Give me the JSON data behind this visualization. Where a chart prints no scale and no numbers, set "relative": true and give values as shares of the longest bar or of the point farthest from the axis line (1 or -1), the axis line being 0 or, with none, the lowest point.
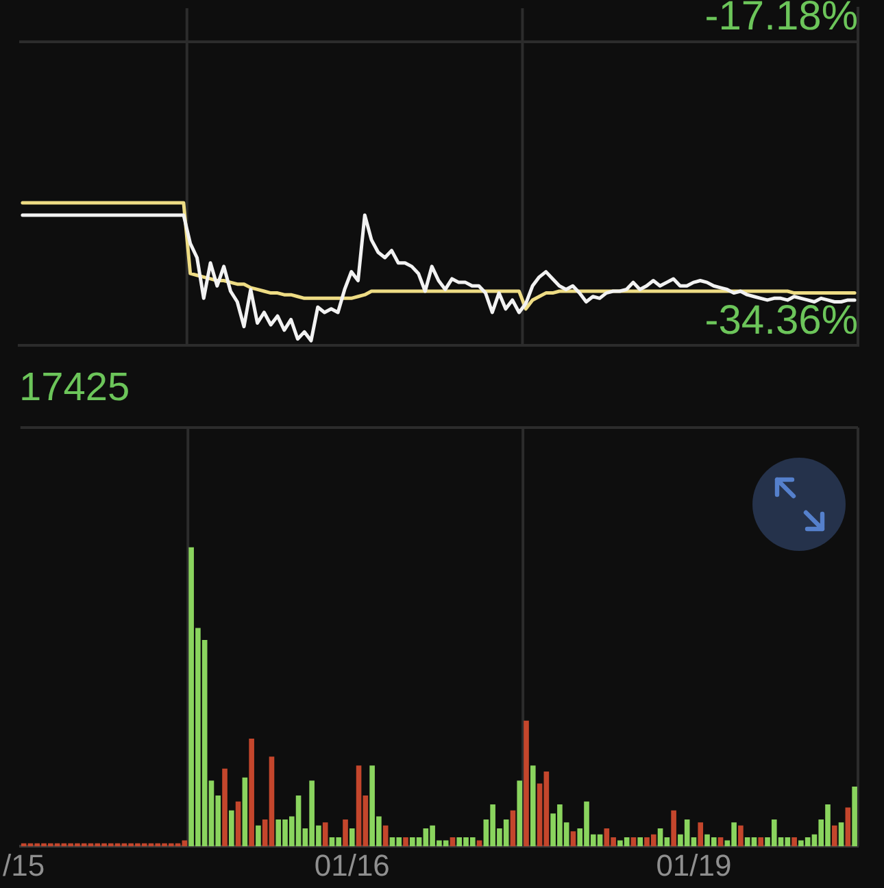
{
  "chart_data": [
    {
      "type": "line",
      "categories": [
        null,
        null,
        null,
        null,
        null,
        null,
        null,
        null,
        null,
        null,
        null,
        null,
        null,
        null,
        null,
        null,
        null,
        null,
        null,
        null,
        null,
        null,
        null,
        null,
        null,
        null,
        null,
        null,
        null,
        null,
        null,
        null,
        null,
        null,
        null,
        null,
        null,
        null,
        null,
        null,
        null,
        null,
        null,
        null,
        null,
        null,
        null,
        null,
        null,
        null,
        null,
        null,
        null,
        null,
        null,
        null,
        null,
        null,
        null,
        null,
        null,
        null,
        null,
        null,
        null,
        null,
        null,
        null,
        null,
        null,
        null,
        null,
        null,
        null,
        null,
        null,
        null,
        null,
        null,
        null,
        null,
        null,
        null,
        null,
        null,
        null,
        null,
        null,
        null,
        null,
        null,
        null,
        null,
        null,
        null,
        null,
        null,
        null,
        null,
        null,
        null,
        null,
        null,
        null,
        null,
        null,
        null,
        null,
        null,
        null,
        null,
        null,
        null,
        null,
        null,
        null,
        null,
        null,
        null,
        null,
        null,
        null,
        null,
        null,
        null
      ],
      "series": [
        {
          "color": "#f2f2f2",
          "values": [
            -27.0,
            -27.0,
            -27.0,
            -27.0,
            -27.0,
            -27.0,
            -27.0,
            -27.0,
            -27.0,
            -27.0,
            -27.0,
            -27.0,
            -27.0,
            -27.0,
            -27.0,
            -27.0,
            -27.0,
            -27.0,
            -27.0,
            -27.0,
            -27.0,
            -27.0,
            -27.0,
            -27.0,
            -27.0,
            -28.6,
            -29.4,
            -31.7,
            -29.7,
            -31.0,
            -29.9,
            -31.3,
            -31.9,
            -33.3,
            -31.2,
            -33.1,
            -32.5,
            -33.2,
            -32.7,
            -33.5,
            -32.9,
            -34.0,
            -33.6,
            -34.1,
            -32.2,
            -32.5,
            -32.3,
            -32.5,
            -31.2,
            -30.2,
            -30.7,
            -27.0,
            -28.4,
            -29.1,
            -29.4,
            -29.0,
            -29.7,
            -29.7,
            -29.9,
            -30.3,
            -31.3,
            -29.9,
            -30.7,
            -31.2,
            -30.6,
            -30.8,
            -30.8,
            -31.0,
            -31.0,
            -31.4,
            -32.5,
            -31.4,
            -32.3,
            -31.8,
            -32.5,
            -32.0,
            -31.0,
            -30.5,
            -30.2,
            -30.6,
            -31.0,
            -31.2,
            -31.0,
            -31.4,
            -31.9,
            -31.6,
            -31.7,
            -31.4,
            -31.3,
            -31.3,
            -31.2,
            -30.8,
            -31.2,
            -31.0,
            -30.7,
            -31.0,
            -30.8,
            -30.6,
            -31.0,
            -31.0,
            -30.8,
            -30.7,
            -30.8,
            -31.0,
            -31.1,
            -31.2,
            -31.4,
            -31.3,
            -31.5,
            -31.6,
            -31.7,
            -31.8,
            -31.7,
            -31.7,
            -31.8,
            -31.6,
            -31.7,
            -31.8,
            -31.9,
            -31.7,
            -31.8,
            -31.9,
            -31.9,
            -31.8,
            -31.8
          ]
        },
        {
          "color": "#eedc84",
          "values": [
            -26.3,
            -26.3,
            -26.3,
            -26.3,
            -26.3,
            -26.3,
            -26.3,
            -26.3,
            -26.3,
            -26.3,
            -26.3,
            -26.3,
            -26.3,
            -26.3,
            -26.3,
            -26.3,
            -26.3,
            -26.3,
            -26.3,
            -26.3,
            -26.3,
            -26.3,
            -26.3,
            -26.3,
            -26.3,
            -30.3,
            -30.4,
            -30.5,
            -30.6,
            -30.7,
            -30.7,
            -30.8,
            -30.9,
            -30.9,
            -31.1,
            -31.2,
            -31.3,
            -31.4,
            -31.4,
            -31.5,
            -31.5,
            -31.6,
            -31.7,
            -31.7,
            -31.7,
            -31.7,
            -31.7,
            -31.7,
            -31.7,
            -31.7,
            -31.6,
            -31.5,
            -31.3,
            -31.3,
            -31.3,
            -31.3,
            -31.3,
            -31.3,
            -31.3,
            -31.3,
            -31.3,
            -31.3,
            -31.3,
            -31.3,
            -31.3,
            -31.3,
            -31.3,
            -31.3,
            -31.3,
            -31.3,
            -31.3,
            -31.3,
            -31.3,
            -31.3,
            -31.3,
            -32.3,
            -31.8,
            -31.6,
            -31.4,
            -31.4,
            -31.3,
            -31.3,
            -31.3,
            -31.3,
            -31.3,
            -31.3,
            -31.3,
            -31.3,
            -31.3,
            -31.3,
            -31.3,
            -31.3,
            -31.3,
            -31.3,
            -31.3,
            -31.3,
            -31.3,
            -31.3,
            -31.3,
            -31.3,
            -31.3,
            -31.3,
            -31.3,
            -31.3,
            -31.3,
            -31.3,
            -31.3,
            -31.3,
            -31.3,
            -31.3,
            -31.3,
            -31.3,
            -31.3,
            -31.3,
            -31.3,
            -31.4,
            -31.4,
            -31.4,
            -31.4,
            -31.4,
            -31.4,
            -31.4,
            -31.4,
            -31.4,
            -31.4
          ]
        }
      ],
      "ylim": [
        -34.36,
        -15.3
      ],
      "yticks": [
        {
          "value": -34.36,
          "label": "-34.36%"
        },
        {
          "value": -17.18,
          "label": "-17.18%"
        }
      ],
      "grid": true,
      "tick_labels": "y"
    },
    {
      "type": "bar",
      "title": "17425",
      "relative": true,
      "stacked": true,
      "categories": [
        "/15",
        null,
        null,
        null,
        null,
        null,
        null,
        null,
        null,
        null,
        null,
        null,
        null,
        null,
        null,
        null,
        null,
        null,
        null,
        null,
        null,
        null,
        null,
        null,
        null,
        null,
        null,
        null,
        null,
        null,
        null,
        null,
        null,
        null,
        null,
        null,
        null,
        null,
        null,
        null,
        null,
        null,
        null,
        null,
        null,
        null,
        null,
        null,
        null,
        "01/16",
        null,
        null,
        null,
        null,
        null,
        null,
        null,
        null,
        null,
        null,
        null,
        null,
        null,
        null,
        null,
        null,
        null,
        null,
        null,
        null,
        null,
        null,
        null,
        null,
        null,
        null,
        null,
        null,
        null,
        null,
        null,
        null,
        null,
        null,
        null,
        null,
        null,
        null,
        null,
        null,
        null,
        null,
        null,
        null,
        null,
        null,
        null,
        null,
        null,
        null,
        "01/19",
        null,
        null,
        null,
        null,
        null,
        null,
        null,
        null,
        null,
        null,
        null,
        null,
        null,
        null,
        null,
        null,
        null,
        null,
        null,
        null,
        null,
        null,
        null,
        null
      ],
      "series": [
        {
          "color": "#8ad45e",
          "values": [
            null,
            null,
            null,
            null,
            null,
            null,
            null,
            null,
            null,
            null,
            null,
            null,
            null,
            null,
            null,
            null,
            null,
            null,
            null,
            null,
            null,
            null,
            null,
            null,
            null,
            1.0,
            0.73,
            0.69,
            0.22,
            0.17,
            null,
            0.12,
            null,
            0.23,
            null,
            0.07,
            null,
            null,
            0.09,
            0.09,
            0.1,
            0.17,
            0.06,
            0.22,
            0.07,
            null,
            0.03,
            0.03,
            null,
            0.06,
            null,
            null,
            0.27,
            0.1,
            null,
            0.03,
            0.03,
            null,
            0.03,
            0.03,
            0.06,
            0.07,
            0.02,
            0.02,
            null,
            0.03,
            0.03,
            0.03,
            null,
            0.09,
            0.14,
            0.06,
            0.09,
            null,
            0.22,
            null,
            0.27,
            null,
            null,
            0.11,
            0.14,
            0.08,
            null,
            0.06,
            0.15,
            0.04,
            0.04,
            null,
            null,
            0.02,
            0.03,
            null,
            0.03,
            null,
            null,
            0.06,
            0.03,
            null,
            0.04,
            0.09,
            0.03,
            null,
            0.04,
            0.03,
            null,
            0.02,
            0.08,
            null,
            0.03,
            0.03,
            null,
            0.03,
            0.09,
            0.03,
            0.03,
            null,
            0.02,
            0.03,
            0.04,
            0.09,
            0.14,
            null,
            0.08,
            null,
            0.2
          ]
        },
        {
          "color": "#c4462c",
          "values": [
            0.01,
            0.01,
            0.01,
            0.01,
            0.01,
            0.01,
            0.01,
            0.01,
            0.01,
            0.01,
            0.01,
            0.01,
            0.01,
            0.01,
            0.01,
            0.01,
            0.01,
            0.01,
            0.01,
            0.01,
            0.01,
            0.01,
            0.01,
            0.01,
            0.02,
            null,
            null,
            null,
            null,
            null,
            0.26,
            null,
            0.15,
            null,
            0.36,
            null,
            0.09,
            0.3,
            null,
            null,
            null,
            null,
            null,
            null,
            null,
            0.08,
            null,
            null,
            0.09,
            null,
            0.27,
            0.17,
            null,
            null,
            0.07,
            null,
            null,
            0.03,
            null,
            null,
            null,
            null,
            null,
            null,
            0.03,
            null,
            null,
            null,
            0.02,
            null,
            null,
            null,
            null,
            0.12,
            null,
            0.42,
            null,
            0.21,
            0.25,
            null,
            null,
            null,
            0.05,
            null,
            null,
            null,
            null,
            0.06,
            0.03,
            null,
            null,
            0.03,
            null,
            0.03,
            0.04,
            null,
            null,
            0.12,
            null,
            null,
            null,
            0.08,
            null,
            null,
            0.03,
            null,
            null,
            0.07,
            null,
            null,
            0.03,
            null,
            null,
            null,
            null,
            0.03,
            null,
            null,
            null,
            null,
            null,
            0.07,
            null,
            0.13,
            null
          ]
        }
      ],
      "grid": "x",
      "tick_labels": "x"
    }
  ]
}
